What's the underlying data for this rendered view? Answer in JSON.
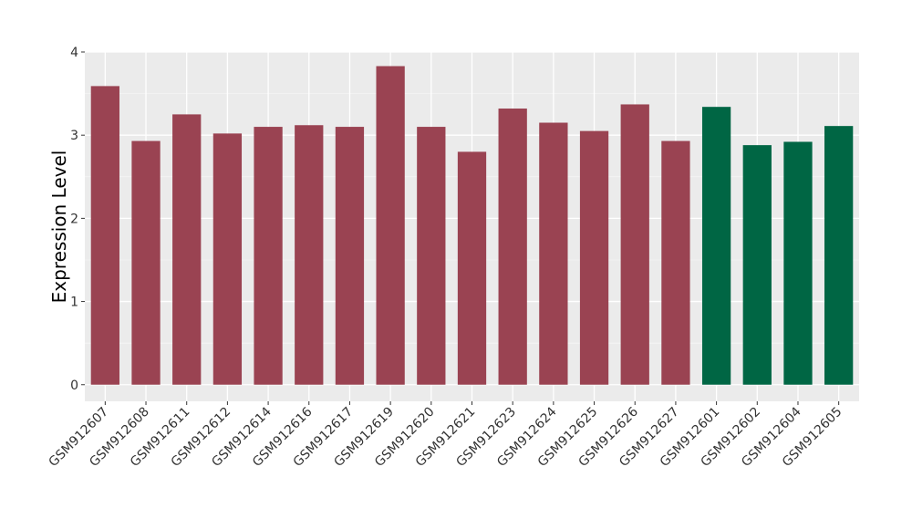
{
  "chart_data": {
    "type": "bar",
    "title": "",
    "xlabel": "",
    "ylabel": "Expression Level",
    "ylim": [
      -0.2,
      4.0
    ],
    "yticks": [
      0,
      1,
      2,
      3,
      4
    ],
    "grid": true,
    "categories": [
      "GSM912607",
      "GSM912608",
      "GSM912611",
      "GSM912612",
      "GSM912614",
      "GSM912616",
      "GSM912617",
      "GSM912619",
      "GSM912620",
      "GSM912621",
      "GSM912623",
      "GSM912624",
      "GSM912625",
      "GSM912626",
      "GSM912627",
      "GSM912601",
      "GSM912602",
      "GSM912604",
      "GSM912605"
    ],
    "values": [
      3.59,
      2.93,
      3.25,
      3.02,
      3.1,
      3.12,
      3.1,
      3.83,
      3.1,
      2.8,
      3.32,
      3.15,
      3.05,
      3.37,
      2.93,
      3.34,
      2.88,
      2.92,
      3.11
    ],
    "bar_colors": [
      "#9a4352",
      "#9a4352",
      "#9a4352",
      "#9a4352",
      "#9a4352",
      "#9a4352",
      "#9a4352",
      "#9a4352",
      "#9a4352",
      "#9a4352",
      "#9a4352",
      "#9a4352",
      "#9a4352",
      "#9a4352",
      "#9a4352",
      "#006644",
      "#006644",
      "#006644",
      "#006644"
    ]
  }
}
